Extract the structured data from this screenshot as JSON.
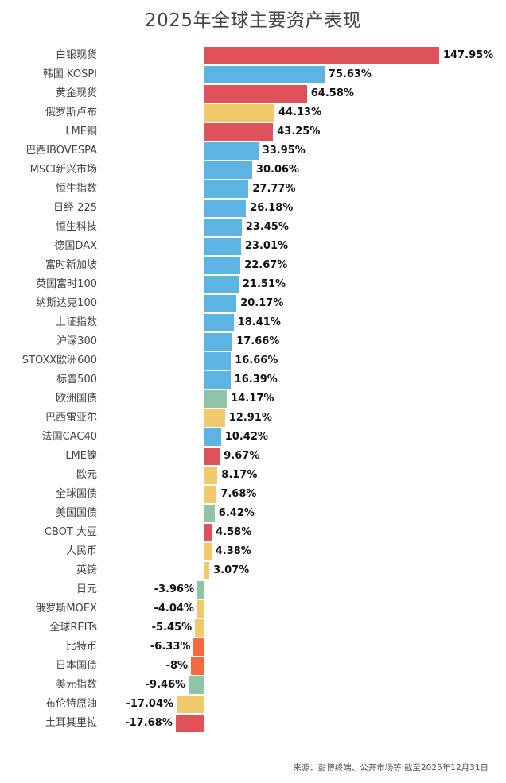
{
  "chart_data": {
    "type": "bar",
    "orientation": "horizontal",
    "title": "2025年全球主要资产表现",
    "xlabel": "",
    "ylabel": "",
    "grid": false,
    "legend": null,
    "source": "来源：彭博终端、公开市场等 截至2025年12月31日",
    "colors": {
      "commodity": "#e0525a",
      "equity": "#5db4e3",
      "currency": "#f0c96a",
      "bond": "#8fc4a6",
      "alt": "#f26a3e"
    },
    "categories": [
      "白银现货",
      "韩国 KOSPI",
      "黄金现货",
      "俄罗斯卢布",
      "LME铜",
      "巴西IBOVESPA",
      "MSCI新兴市场",
      "恒生指数",
      "日经 225",
      "恒生科技",
      "德国DAX",
      "富时新加坡",
      "英国富时100",
      "纳斯达克100",
      "上证指数",
      "沪深300",
      "STOXX欧洲600",
      "标普500",
      "欧洲国债",
      "巴西雷亚尔",
      "法国CAC40",
      "LME镍",
      "欧元",
      "全球国债",
      "美国国债",
      "CBOT 大豆",
      "人民币",
      "英镑",
      "日元",
      "俄罗斯MOEX",
      "全球REITs",
      "比特币",
      "日本国债",
      "美元指数",
      "布伦特原油",
      "土耳其里拉"
    ],
    "values": [
      147.95,
      75.63,
      64.58,
      44.13,
      43.25,
      33.95,
      30.06,
      27.77,
      26.18,
      23.45,
      23.01,
      22.67,
      21.51,
      20.17,
      18.41,
      17.66,
      16.66,
      16.39,
      14.17,
      12.91,
      10.42,
      9.67,
      8.17,
      7.68,
      6.42,
      4.58,
      4.38,
      3.07,
      -3.96,
      -4.04,
      -5.45,
      -6.33,
      -8,
      -9.46,
      -17.04,
      -17.68
    ],
    "labels": [
      "147.95%",
      "75.63%",
      "64.58%",
      "44.13%",
      "43.25%",
      "33.95%",
      "30.06%",
      "27.77%",
      "26.18%",
      "23.45%",
      "23.01%",
      "22.67%",
      "21.51%",
      "20.17%",
      "18.41%",
      "17.66%",
      "16.66%",
      "16.39%",
      "14.17%",
      "12.91%",
      "10.42%",
      "9.67%",
      "8.17%",
      "7.68%",
      "6.42%",
      "4.58%",
      "4.38%",
      "3.07%",
      "-3.96%",
      "-4.04%",
      "-5.45%",
      "-6.33%",
      "-8%",
      "-9.46%",
      "-17.04%",
      "-17.68%"
    ],
    "bar_colors": [
      "#e0525a",
      "#5db4e3",
      "#e0525a",
      "#f0c96a",
      "#e0525a",
      "#5db4e3",
      "#5db4e3",
      "#5db4e3",
      "#5db4e3",
      "#5db4e3",
      "#5db4e3",
      "#5db4e3",
      "#5db4e3",
      "#5db4e3",
      "#5db4e3",
      "#5db4e3",
      "#5db4e3",
      "#5db4e3",
      "#8fc4a6",
      "#f0c96a",
      "#5db4e3",
      "#e0525a",
      "#f0c96a",
      "#f0c96a",
      "#8fc4a6",
      "#e0525a",
      "#f0c96a",
      "#f0c96a",
      "#8fc4a6",
      "#f0c96a",
      "#f0c96a",
      "#f26a3e",
      "#f26a3e",
      "#8fc4a6",
      "#f0c96a",
      "#e0525a"
    ]
  }
}
